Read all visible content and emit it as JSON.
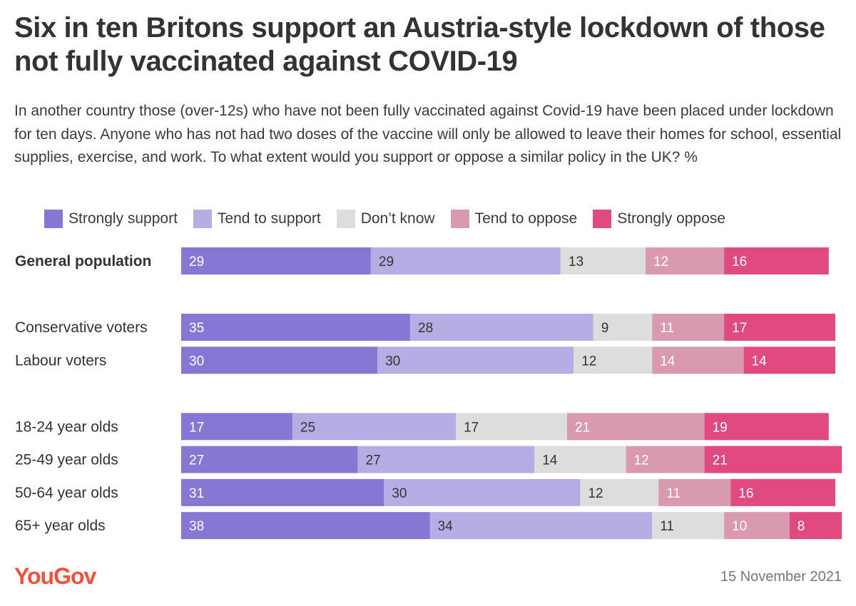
{
  "title": "Six in ten Britons support an Austria-style lockdown of those not fully vaccinated against COVID-19",
  "subtitle": "In another country those (over-12s) who have not been fully vaccinated against Covid-19 have been placed under lockdown for ten days. Anyone who has not had two doses of the vaccine will only be allowed to leave their homes for school, essential supplies, exercise, and work. To what extent would you support or oppose a similar policy in the UK? %",
  "brand": "YouGov",
  "date": "15 November 2021",
  "chart_data": {
    "type": "bar",
    "orientation": "horizontal-stacked",
    "unit": "%",
    "title": "Six in ten Britons support an Austria-style lockdown of those not fully vaccinated against COVID-19",
    "legend_position": "top",
    "series": [
      {
        "name": "Strongly support",
        "color": "#8777d5",
        "label_color": "#ffffff"
      },
      {
        "name": "Tend to support",
        "color": "#b6ade5",
        "label_color": "#333333"
      },
      {
        "name": "Don’t know",
        "color": "#dddddd",
        "label_color": "#333333"
      },
      {
        "name": "Tend to oppose",
        "color": "#d99aaf",
        "label_color": "#ffffff"
      },
      {
        "name": "Strongly oppose",
        "color": "#e04a80",
        "label_color": "#ffffff"
      }
    ],
    "groups": [
      {
        "rows": [
          {
            "label": "General population",
            "bold": true,
            "values": [
              29,
              29,
              13,
              12,
              16
            ]
          }
        ]
      },
      {
        "rows": [
          {
            "label": "Conservative voters",
            "values": [
              35,
              28,
              9,
              11,
              17
            ]
          },
          {
            "label": "Labour voters",
            "values": [
              30,
              30,
              12,
              14,
              14
            ]
          }
        ]
      },
      {
        "rows": [
          {
            "label": "18-24 year olds",
            "values": [
              17,
              25,
              17,
              21,
              19
            ]
          },
          {
            "label": "25-49 year olds",
            "values": [
              27,
              27,
              14,
              12,
              21
            ]
          },
          {
            "label": "50-64 year olds",
            "values": [
              31,
              30,
              12,
              11,
              16
            ]
          },
          {
            "label": "65+ year olds",
            "values": [
              38,
              34,
              11,
              10,
              8
            ]
          }
        ]
      }
    ]
  }
}
